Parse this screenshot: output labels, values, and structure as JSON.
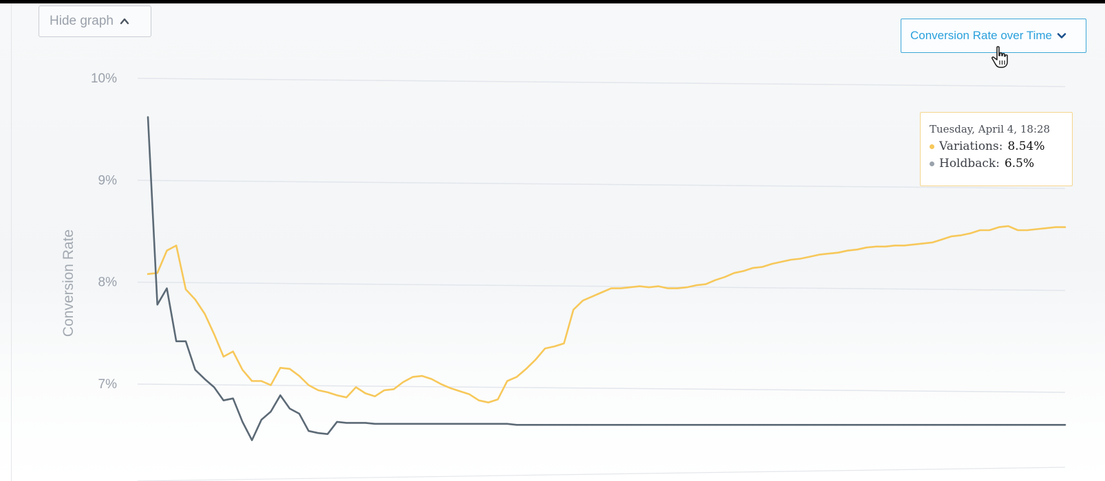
{
  "toolbar": {
    "hide_graph_label": "Hide graph",
    "metric_select_value": "Conversion Rate over Time"
  },
  "colors": {
    "variations": "#f7c85a",
    "holdback": "#5c6a76",
    "accent": "#2aa0dc",
    "tooltip_border": "#f4d58c"
  },
  "tooltip": {
    "date": "Tuesday, April 4, 18:28",
    "rows": [
      {
        "name": "Variations:",
        "value": "8.54%"
      },
      {
        "name": "Holdback:",
        "value": "6.5%"
      }
    ]
  },
  "icons": {
    "hide_graph": "chevron-up-icon",
    "metric_select": "chevron-down-icon",
    "cursor": "pointer-hand-icon",
    "tooltip_bullet": "dot-icon"
  },
  "chart_data": {
    "type": "line",
    "title": "",
    "xlabel": "",
    "ylabel": "Conversion Rate",
    "y_ticks": [
      "10%",
      "9%",
      "8%",
      "7%"
    ],
    "y_tick_values": [
      10,
      9,
      8,
      7
    ],
    "ylim": [
      6.3,
      10.1
    ],
    "grid": true,
    "legend": "none",
    "series": [
      {
        "name": "Variations",
        "color": "#f7c85a",
        "values": [
          8.08,
          8.09,
          8.31,
          8.36,
          7.93,
          7.83,
          7.69,
          7.49,
          7.27,
          7.32,
          7.14,
          7.03,
          7.03,
          6.99,
          7.16,
          7.15,
          7.08,
          6.99,
          6.94,
          6.92,
          6.89,
          6.87,
          6.97,
          6.91,
          6.88,
          6.94,
          6.95,
          7.02,
          7.07,
          7.08,
          7.05,
          7.0,
          6.96,
          6.93,
          6.9,
          6.84,
          6.82,
          6.85,
          7.03,
          7.07,
          7.15,
          7.24,
          7.35,
          7.37,
          7.4,
          7.73,
          7.82,
          7.86,
          7.9,
          7.94,
          7.94,
          7.95,
          7.96,
          7.95,
          7.96,
          7.94,
          7.94,
          7.95,
          7.97,
          7.98,
          8.02,
          8.05,
          8.09,
          8.11,
          8.14,
          8.15,
          8.18,
          8.2,
          8.22,
          8.23,
          8.25,
          8.27,
          8.28,
          8.29,
          8.31,
          8.32,
          8.34,
          8.35,
          8.35,
          8.36,
          8.36,
          8.37,
          8.38,
          8.39,
          8.42,
          8.45,
          8.46,
          8.48,
          8.51,
          8.51,
          8.54,
          8.55,
          8.51,
          8.51,
          8.52,
          8.53,
          8.54,
          8.54
        ]
      },
      {
        "name": "Holdback",
        "color": "#5c6a76",
        "values": [
          9.62,
          7.78,
          7.94,
          7.42,
          7.42,
          7.14,
          7.05,
          6.97,
          6.84,
          6.86,
          6.63,
          6.45,
          6.65,
          6.73,
          6.89,
          6.76,
          6.71,
          6.54,
          6.52,
          6.51,
          6.63,
          6.62,
          6.62,
          6.62,
          6.61,
          6.61,
          6.61,
          6.61,
          6.61,
          6.61,
          6.61,
          6.61,
          6.61,
          6.61,
          6.61,
          6.61,
          6.61,
          6.61,
          6.61,
          6.6,
          6.6,
          6.6,
          6.6,
          6.6,
          6.6,
          6.6,
          6.6,
          6.6,
          6.6,
          6.6,
          6.6,
          6.6,
          6.6,
          6.6,
          6.6,
          6.6,
          6.6,
          6.6,
          6.6,
          6.6,
          6.6,
          6.6,
          6.6,
          6.6,
          6.6,
          6.6,
          6.6,
          6.6,
          6.6,
          6.6,
          6.6,
          6.6,
          6.6,
          6.6,
          6.6,
          6.6,
          6.6,
          6.6,
          6.6,
          6.6,
          6.6,
          6.6,
          6.6,
          6.6,
          6.6,
          6.6,
          6.6,
          6.6,
          6.6,
          6.6,
          6.6,
          6.6,
          6.6,
          6.6,
          6.6,
          6.6,
          6.6,
          6.6
        ]
      }
    ]
  }
}
